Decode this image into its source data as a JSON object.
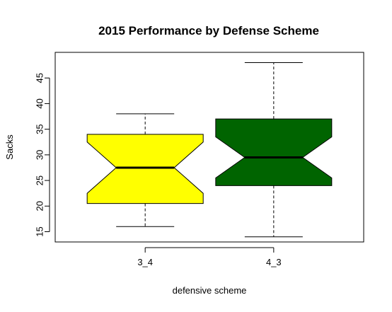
{
  "chart_data": {
    "type": "boxplot",
    "title": "2015 Performance by Defense Scheme",
    "xlabel": "defensive scheme",
    "ylabel": "Sacks",
    "notched": true,
    "ylim": [
      13,
      50
    ],
    "yticks": [
      15,
      20,
      25,
      30,
      35,
      40,
      45
    ],
    "grid": false,
    "categories": [
      "3_4",
      "4_3"
    ],
    "boxes": [
      {
        "category": "3_4",
        "whisker_low": 16,
        "q1": 20.5,
        "median": 27.5,
        "q3": 34,
        "whisker_high": 38,
        "notch_low": 22.5,
        "notch_high": 32.5,
        "color": "#ffff00"
      },
      {
        "category": "4_3",
        "whisker_low": 14,
        "q1": 24,
        "median": 29.5,
        "q3": 37,
        "whisker_high": 48,
        "notch_low": 25.5,
        "notch_high": 33.5,
        "color": "#006400"
      }
    ]
  }
}
